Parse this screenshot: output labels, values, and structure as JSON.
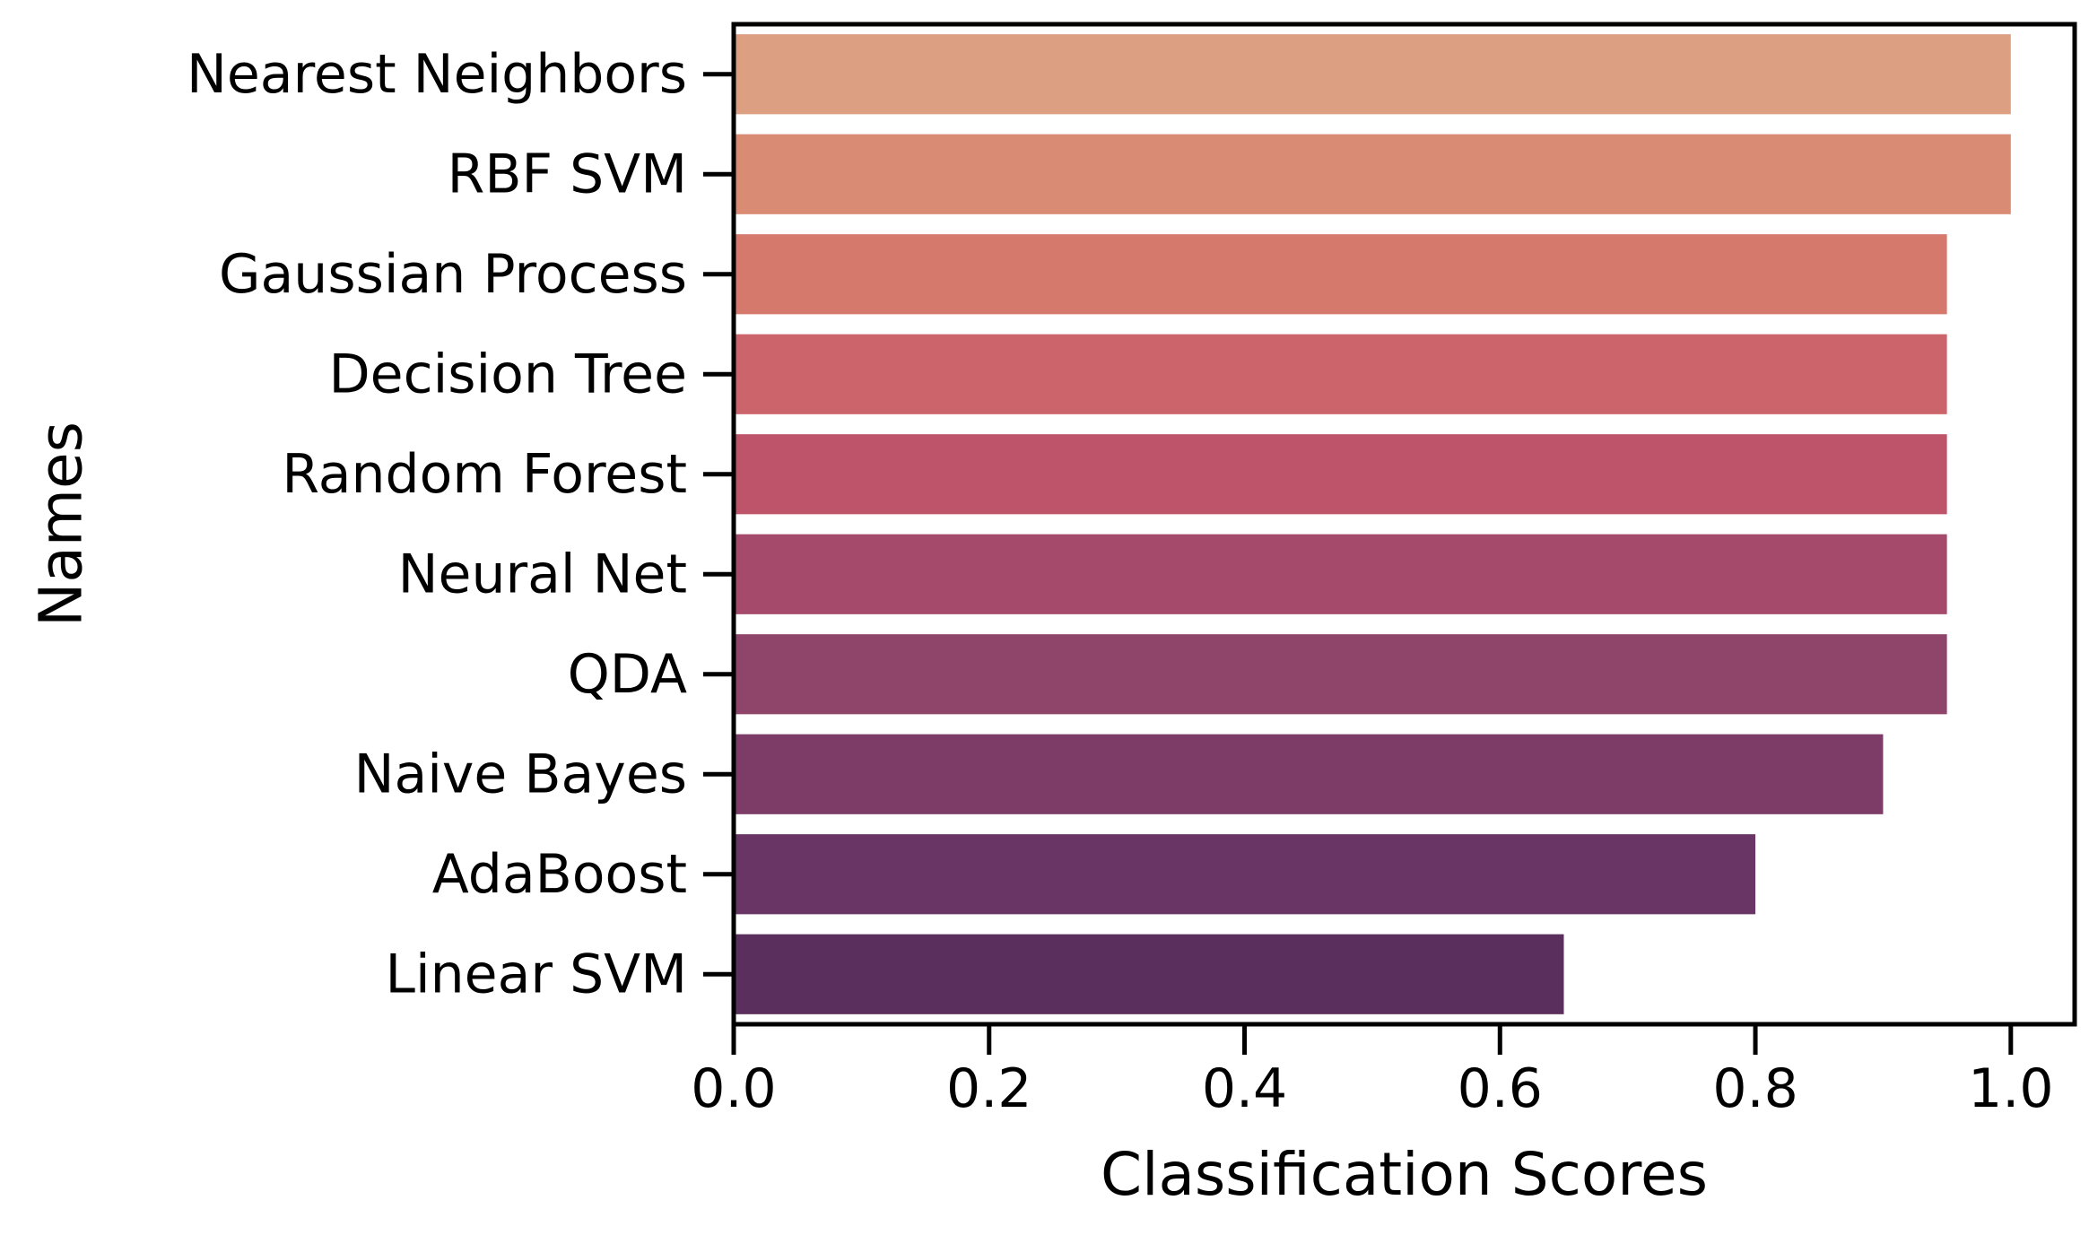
{
  "chart_data": {
    "type": "bar",
    "orientation": "horizontal",
    "categories": [
      "Nearest Neighbors",
      "RBF SVM",
      "Gaussian Process",
      "Decision Tree",
      "Random Forest",
      "Neural Net",
      "QDA",
      "Naive Bayes",
      "AdaBoost",
      "Linear SVM"
    ],
    "values": [
      1.0,
      1.0,
      0.95,
      0.95,
      0.95,
      0.95,
      0.95,
      0.9,
      0.8,
      0.65
    ],
    "colors": [
      "#dd9f81",
      "#da8b74",
      "#d4796c",
      "#cc656b",
      "#bd546a",
      "#a54a6b",
      "#8f446a",
      "#7d3c68",
      "#683564",
      "#5a2f5e"
    ],
    "xlabel": "Classification Scores",
    "ylabel": "Names",
    "xlim": [
      0,
      1.05
    ],
    "xticks": [
      "0.0",
      "0.2",
      "0.4",
      "0.6",
      "0.8",
      "1.0"
    ],
    "grid": false,
    "legend": "none"
  }
}
